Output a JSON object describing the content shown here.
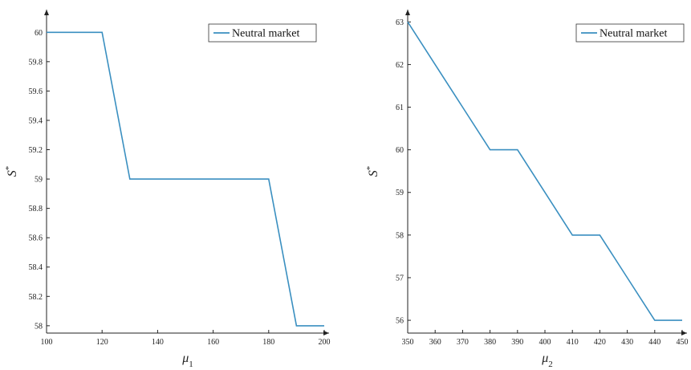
{
  "chart_data": [
    {
      "type": "line",
      "x": [
        100,
        120,
        130,
        140,
        150,
        160,
        170,
        180,
        190,
        200
      ],
      "series": [
        {
          "name": "Neutral market",
          "color": "#3a8fc0",
          "values": [
            60,
            60,
            59,
            59,
            59,
            59,
            59,
            59,
            58,
            58
          ]
        }
      ],
      "xlabel": "μ1",
      "ylabel": "S*",
      "xlim": [
        100,
        200
      ],
      "ylim": [
        57.95,
        60.1
      ],
      "xticks": [
        100,
        120,
        140,
        160,
        180,
        200
      ],
      "xtick_labels": [
        "100",
        "120",
        "140",
        "160",
        "180",
        "200"
      ],
      "yticks": [
        58,
        58.2,
        58.4,
        58.6,
        58.8,
        59,
        59.2,
        59.4,
        59.6,
        59.8,
        60
      ],
      "ytick_labels": [
        "58",
        "58.2",
        "58.4",
        "58.6",
        "58.8",
        "59",
        "59.2",
        "59.4",
        "59.6",
        "59.8",
        "60"
      ],
      "legend_position": "top-right",
      "grid": false
    },
    {
      "type": "line",
      "x": [
        350,
        360,
        370,
        380,
        390,
        400,
        410,
        420,
        430,
        440,
        450
      ],
      "series": [
        {
          "name": "Neutral market",
          "color": "#3a8fc0",
          "values": [
            63,
            62,
            61,
            60,
            60,
            59,
            58,
            58,
            57,
            56,
            56
          ]
        }
      ],
      "xlabel": "μ2",
      "ylabel": "S*",
      "xlim": [
        350,
        450
      ],
      "ylim": [
        55.7,
        63.1
      ],
      "xticks": [
        350,
        360,
        370,
        380,
        390,
        400,
        410,
        420,
        430,
        440,
        450
      ],
      "xtick_labels": [
        "350",
        "360",
        "370",
        "380",
        "390",
        "400",
        "410",
        "420",
        "430",
        "440",
        "450"
      ],
      "yticks": [
        56,
        57,
        58,
        59,
        60,
        61,
        62,
        63
      ],
      "ytick_labels": [
        "56",
        "57",
        "58",
        "59",
        "60",
        "61",
        "62",
        "63"
      ],
      "legend_position": "top-right",
      "grid": false
    }
  ]
}
